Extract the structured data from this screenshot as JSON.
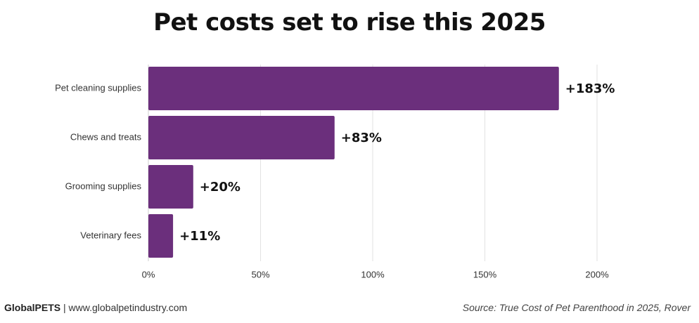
{
  "chart_data": {
    "type": "bar",
    "orientation": "horizontal",
    "title": "Pet costs set to rise this 2025",
    "categories": [
      "Pet cleaning supplies",
      "Chews and treats",
      "Grooming supplies",
      "Veterinary fees"
    ],
    "values": [
      183,
      83,
      20,
      11
    ],
    "data_labels": [
      "+183%",
      "+83%",
      "+20%",
      "+11%"
    ],
    "xlim": [
      0,
      200
    ],
    "ticks": [
      0,
      50,
      100,
      150,
      200
    ],
    "tick_labels": [
      "0%",
      "50%",
      "100%",
      "150%",
      "200%"
    ],
    "xlabel": "",
    "ylabel": "",
    "grid": true,
    "bar_color": "#6b2f7c"
  },
  "footer": {
    "brand": "GlobalPETS",
    "separator": " | ",
    "website": "www.globalpetindustry.com",
    "source": "Source: True Cost of Pet Parenthood in 2025, Rover"
  }
}
